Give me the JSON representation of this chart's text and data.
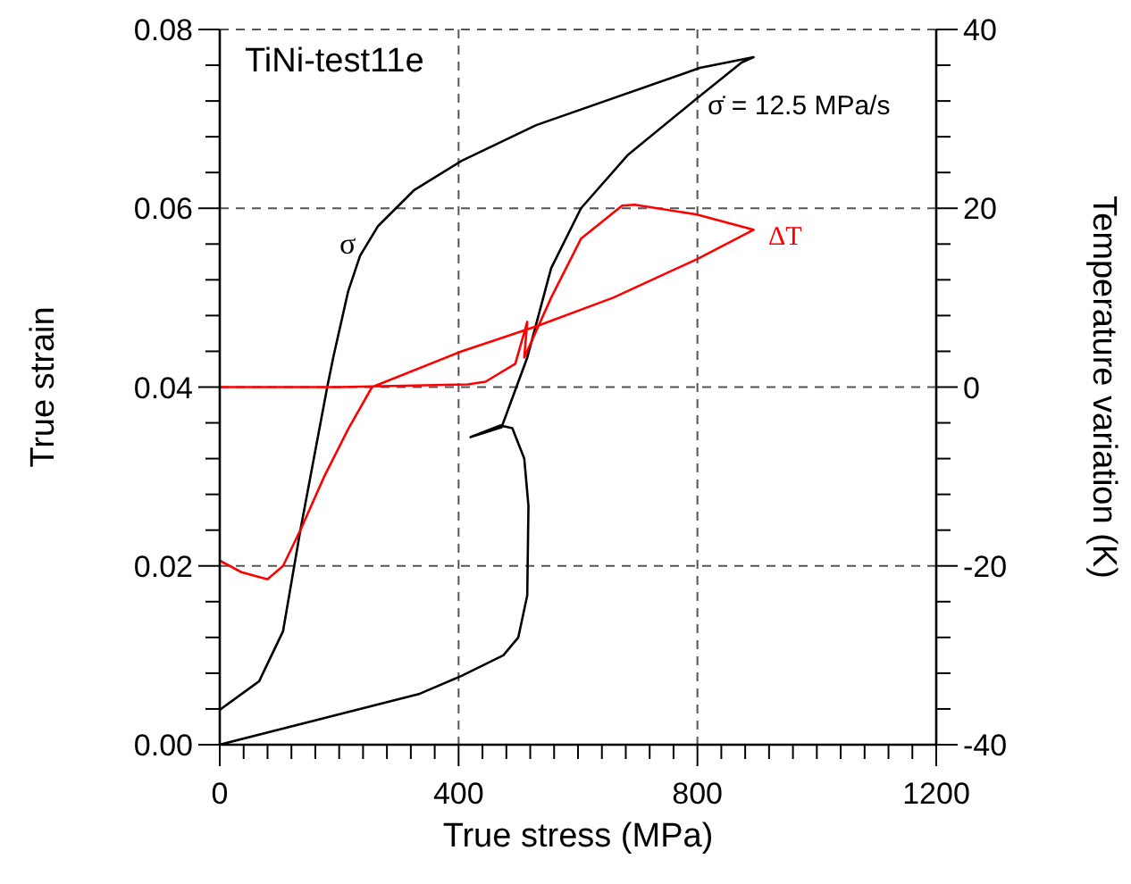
{
  "chart_data": {
    "type": "line",
    "title": "TiNi-test11e",
    "xlabel": "True stress (MPa)",
    "ylabel": "True strain",
    "y2label": "Temperature variation (K)",
    "annotations": [
      "σ̇ = 12.5 MPa/s"
    ],
    "xlim": [
      0,
      1200
    ],
    "ylim": [
      0,
      0.08
    ],
    "y2lim": [
      -40,
      40
    ],
    "xticks": [
      0,
      {
        "value": 40,
        "label": null
      },
      {
        "value": 80,
        "label": null
      },
      {
        "value": 120,
        "label": null
      },
      {
        "value": 160,
        "label": null
      },
      {
        "value": 200,
        "label": null
      },
      {
        "value": 240,
        "label": null
      },
      {
        "value": 280,
        "label": null
      },
      {
        "value": 320,
        "label": null
      },
      {
        "value": 360,
        "label": null
      },
      400,
      {
        "value": 440,
        "label": null
      },
      {
        "value": 480,
        "label": null
      },
      {
        "value": 520,
        "label": null
      },
      {
        "value": 560,
        "label": null
      },
      {
        "value": 600,
        "label": null
      },
      {
        "value": 640,
        "label": null
      },
      {
        "value": 680,
        "label": null
      },
      {
        "value": 720,
        "label": null
      },
      {
        "value": 760,
        "label": null
      },
      800,
      {
        "value": 840,
        "label": null
      },
      {
        "value": 880,
        "label": null
      },
      {
        "value": 920,
        "label": null
      },
      {
        "value": 960,
        "label": null
      },
      {
        "value": 1000,
        "label": null
      },
      {
        "value": 1040,
        "label": null
      },
      {
        "value": 1080,
        "label": null
      },
      {
        "value": 1120,
        "label": null
      },
      {
        "value": 1160,
        "label": null
      },
      1200
    ],
    "yticks": [
      {
        "value": 0,
        "label": "0.00"
      },
      {
        "value": 0.004,
        "label": null
      },
      {
        "value": 0.008,
        "label": null
      },
      {
        "value": 0.012,
        "label": null
      },
      {
        "value": 0.016,
        "label": null
      },
      {
        "value": 0.02,
        "label": "0.02"
      },
      {
        "value": 0.024,
        "label": null
      },
      {
        "value": 0.028,
        "label": null
      },
      {
        "value": 0.032,
        "label": null
      },
      {
        "value": 0.036,
        "label": null
      },
      {
        "value": 0.04,
        "label": "0.04"
      },
      {
        "value": 0.044,
        "label": null
      },
      {
        "value": 0.048,
        "label": null
      },
      {
        "value": 0.052,
        "label": null
      },
      {
        "value": 0.056,
        "label": null
      },
      {
        "value": 0.06,
        "label": "0.06"
      },
      {
        "value": 0.064,
        "label": null
      },
      {
        "value": 0.068,
        "label": null
      },
      {
        "value": 0.072,
        "label": null
      },
      {
        "value": 0.076,
        "label": null
      },
      {
        "value": 0.08,
        "label": "0.08"
      }
    ],
    "y2ticks": [
      -40,
      {
        "value": -36,
        "label": null
      },
      {
        "value": -32,
        "label": null
      },
      {
        "value": -28,
        "label": null
      },
      {
        "value": -24,
        "label": null
      },
      -20,
      {
        "value": -16,
        "label": null
      },
      {
        "value": -12,
        "label": null
      },
      {
        "value": -8,
        "label": null
      },
      {
        "value": -4,
        "label": null
      },
      0,
      {
        "value": 4,
        "label": null
      },
      {
        "value": 8,
        "label": null
      },
      {
        "value": 12,
        "label": null
      },
      {
        "value": 16,
        "label": null
      },
      20,
      {
        "value": 24,
        "label": null
      },
      {
        "value": 28,
        "label": null
      },
      {
        "value": 32,
        "label": null
      },
      {
        "value": 36,
        "label": null
      },
      40
    ],
    "grid": true,
    "line_style": "solid",
    "series": [
      {
        "name": "σ",
        "color": "#000000",
        "x": [
          0,
          335,
          405,
          475,
          500,
          515,
          517,
          510,
          490,
          470,
          420,
          472,
          515,
          555,
          605,
          684,
          794,
          874,
          894,
          804,
          530,
          405,
          325,
          265,
          235,
          215,
          190,
          180,
          135,
          106,
          66,
          0
        ],
        "values": [
          0,
          0.0057,
          0.0077,
          0.01,
          0.012,
          0.0167,
          0.0267,
          0.032,
          0.0354,
          0.0357,
          0.0344,
          0.0355,
          0.0433,
          0.0533,
          0.06,
          0.066,
          0.072,
          0.0763,
          0.0769,
          0.0757,
          0.0693,
          0.0653,
          0.062,
          0.058,
          0.0547,
          0.0507,
          0.0433,
          0.04,
          0.024,
          0.0127,
          0.0071,
          0.0039
        ]
      },
      {
        "name": "ΔT",
        "color": "#ff0000",
        "axis": "y2",
        "x": [
          0,
          200,
          415,
          445,
          495,
          515,
          510,
          555,
          605,
          674,
          695,
          799,
          894,
          799,
          659,
          530,
          405,
          255,
          215,
          175,
          135,
          106,
          80,
          36,
          0
        ],
        "values": [
          0,
          0,
          0.3,
          0.6,
          2.6,
          7.3,
          3.3,
          10,
          16.6,
          20.3,
          20.4,
          19.3,
          17.6,
          14.3,
          10,
          6.8,
          4,
          0,
          -4.7,
          -10,
          -16,
          -20,
          -21.5,
          -20.7,
          -19.4
        ]
      }
    ]
  }
}
